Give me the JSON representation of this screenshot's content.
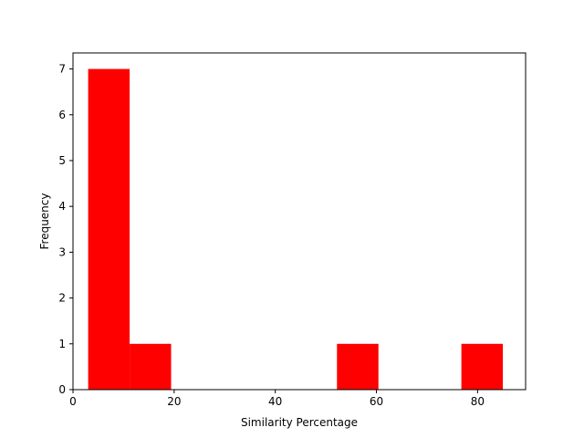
{
  "chart_data": {
    "type": "bar",
    "subtype": "histogram",
    "title": "",
    "xlabel": "Similarity Percentage",
    "ylabel": "Frequency",
    "xlim": [
      0,
      89.5
    ],
    "ylim": [
      0,
      7.35
    ],
    "xticks": [
      0,
      20,
      40,
      60,
      80
    ],
    "yticks": [
      0,
      1,
      2,
      3,
      4,
      5,
      6,
      7
    ],
    "bins": [
      {
        "x0": 3.0,
        "x1": 11.2,
        "value": 7
      },
      {
        "x0": 11.2,
        "x1": 19.4,
        "value": 1
      },
      {
        "x0": 19.4,
        "x1": 27.6,
        "value": 0
      },
      {
        "x0": 27.6,
        "x1": 35.8,
        "value": 0
      },
      {
        "x0": 35.8,
        "x1": 44.0,
        "value": 0
      },
      {
        "x0": 44.0,
        "x1": 52.2,
        "value": 0
      },
      {
        "x0": 52.2,
        "x1": 60.4,
        "value": 1
      },
      {
        "x0": 60.4,
        "x1": 68.6,
        "value": 0
      },
      {
        "x0": 68.6,
        "x1": 76.8,
        "value": 0
      },
      {
        "x0": 76.8,
        "x1": 85.0,
        "value": 1
      }
    ],
    "bar_color": "#ff0000",
    "grid": false,
    "legend": "none"
  }
}
